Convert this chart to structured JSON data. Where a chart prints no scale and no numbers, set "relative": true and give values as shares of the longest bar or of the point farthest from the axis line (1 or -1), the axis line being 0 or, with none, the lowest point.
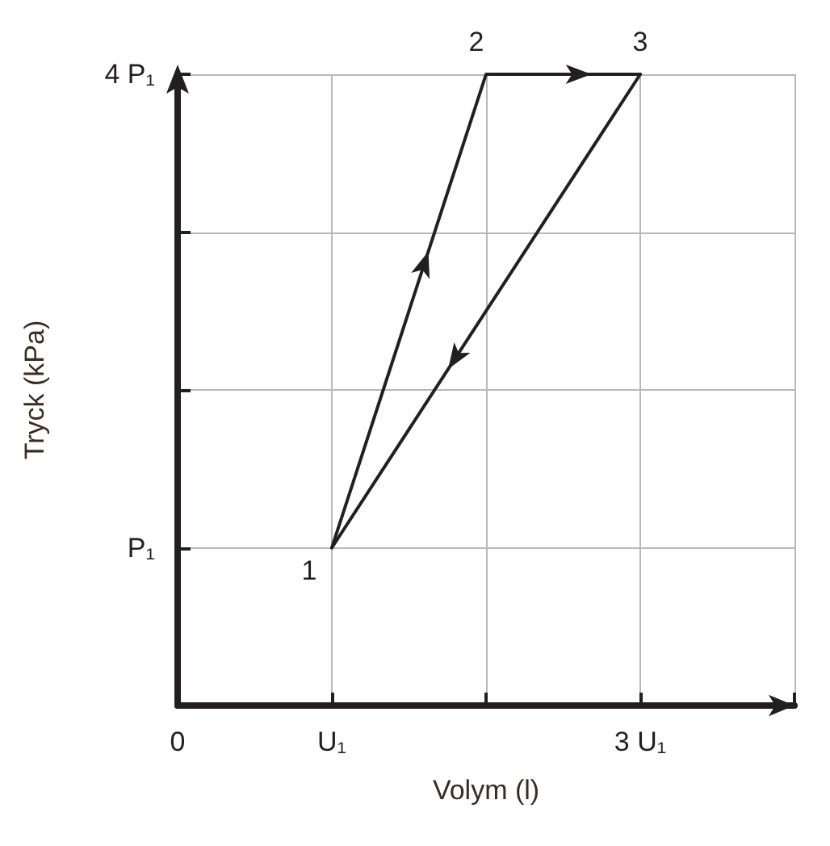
{
  "chart_data": {
    "type": "line",
    "xlabel": "Volym (l)",
    "ylabel": "Tryck (kPa)",
    "relative": true,
    "series": [
      {
        "color": "#231f20",
        "x": [
          1,
          2,
          3
        ],
        "values": [
          0.25,
          1,
          1
        ]
      },
      {
        "color": "#231f20",
        "x": [
          3,
          1
        ],
        "values": [
          1,
          0.25
        ]
      }
    ],
    "xlim": [
      0,
      4
    ],
    "xticks": [
      {
        "value": 0,
        "label": "0"
      },
      {
        "value": 1,
        "label": "U₁"
      },
      {
        "value": 2,
        "label": null
      },
      {
        "value": 3,
        "label": "3 U₁"
      },
      {
        "value": 4,
        "label": null
      }
    ],
    "annotations": [
      "1",
      "2",
      "3",
      "P₁",
      "4 P₁"
    ],
    "grid": true,
    "marker": "none",
    "line_style": "solid"
  }
}
